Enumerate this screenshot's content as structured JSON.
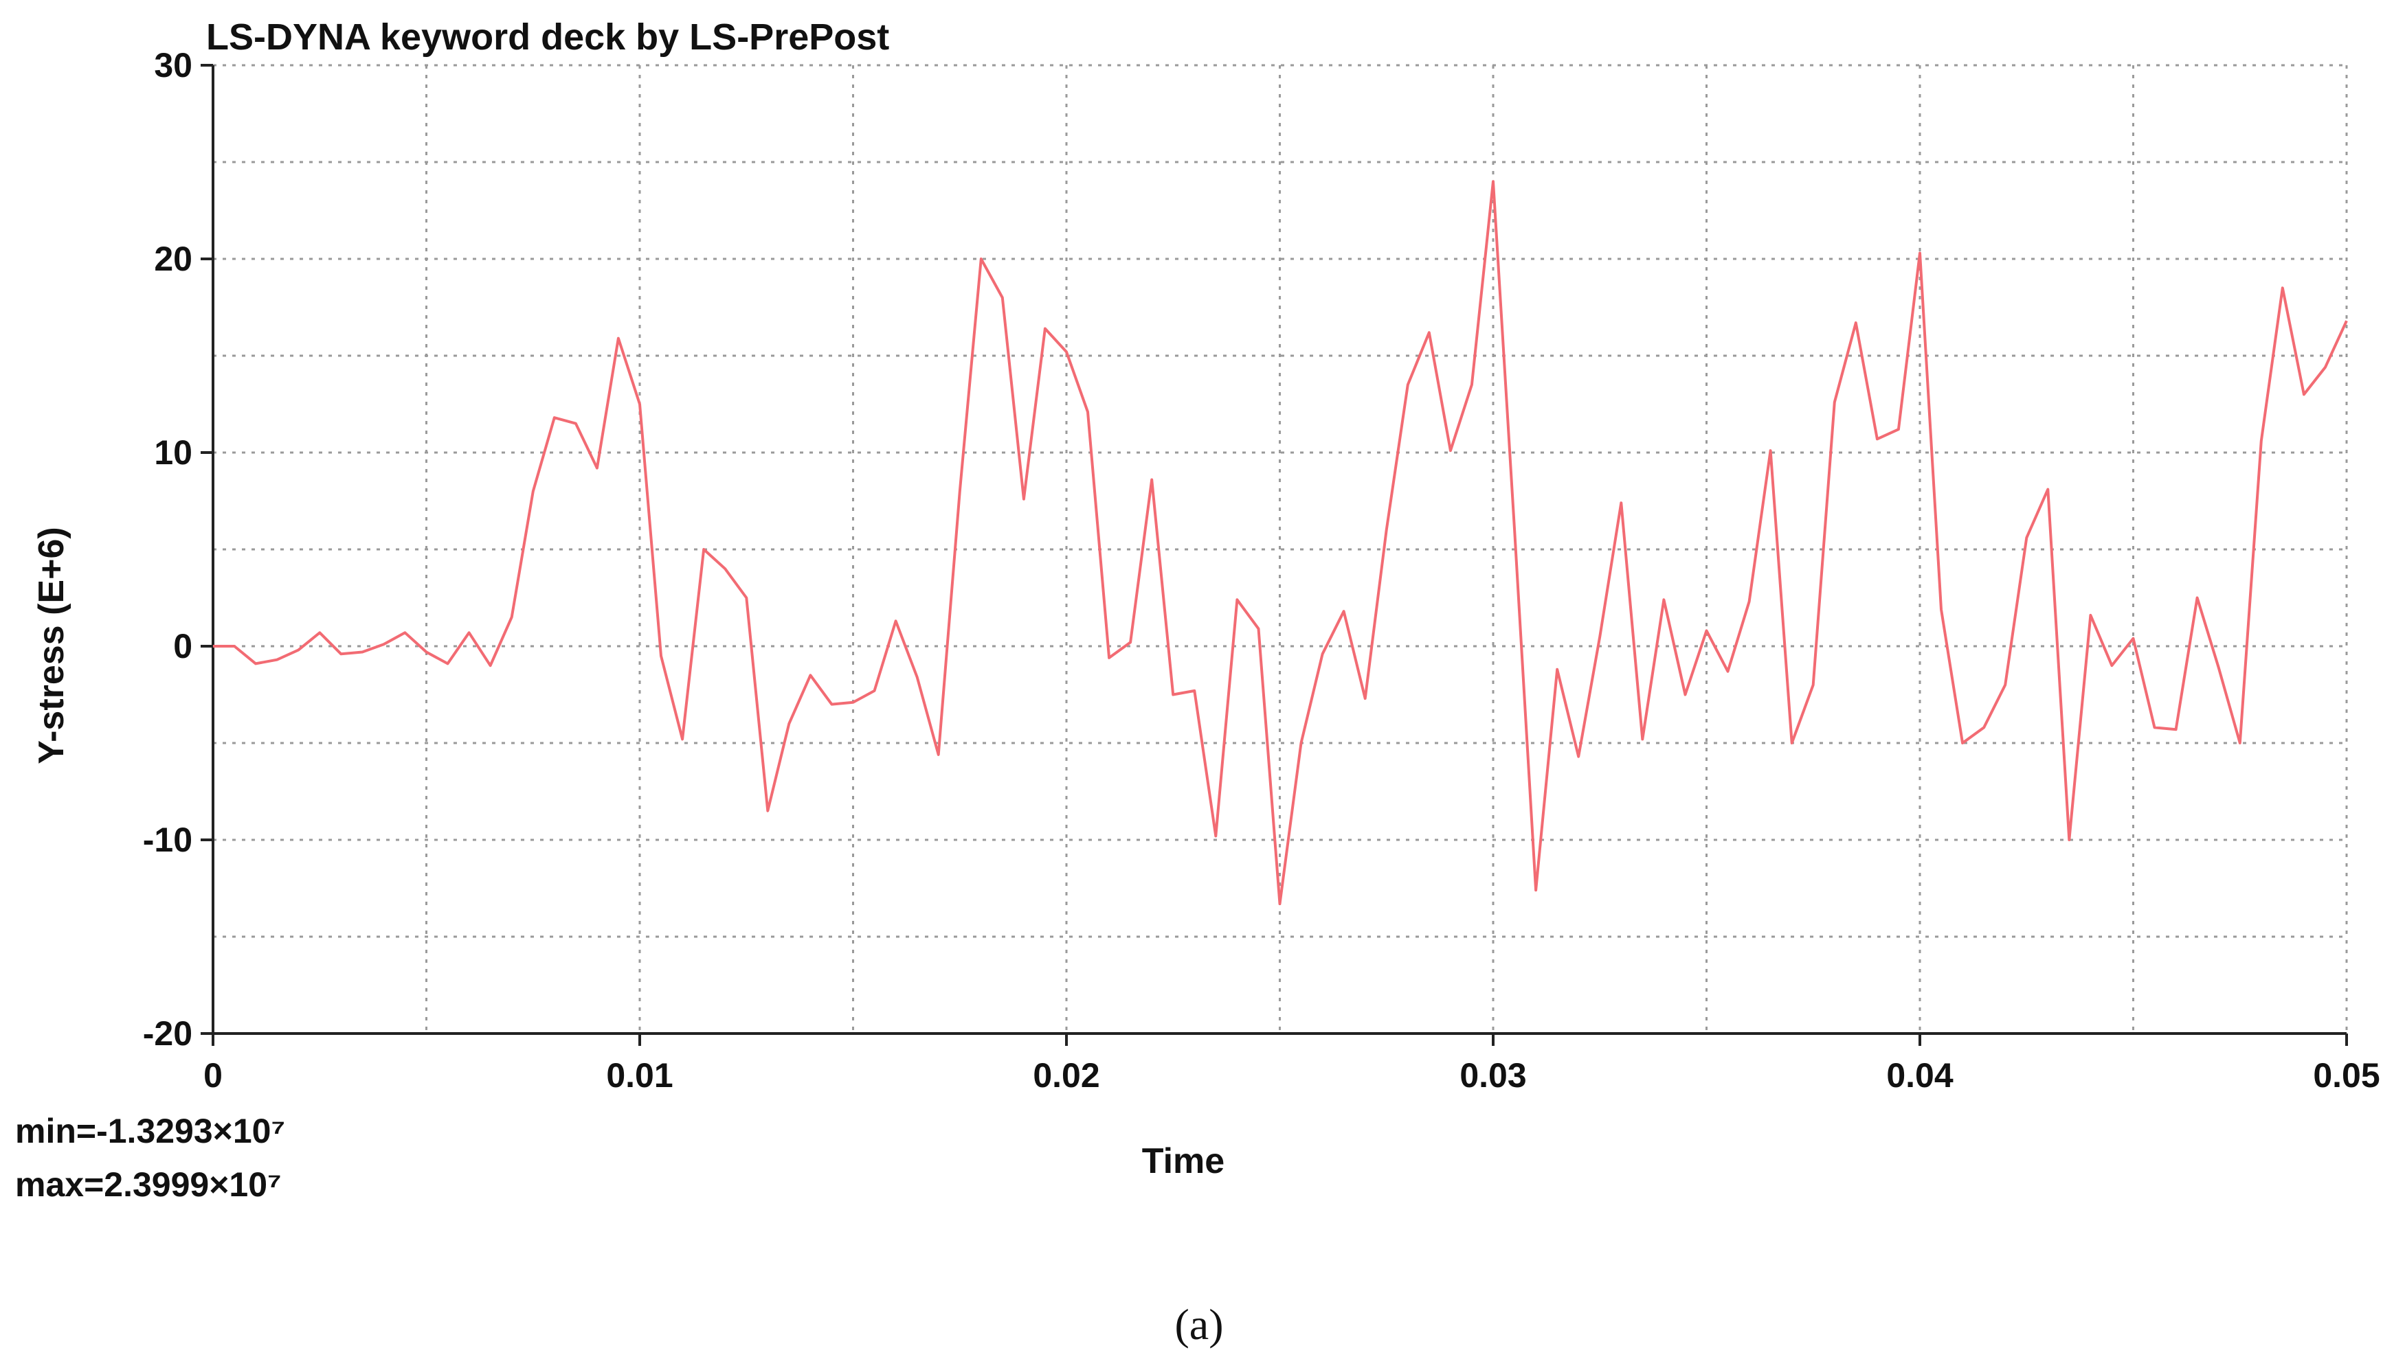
{
  "chart_data": {
    "type": "line",
    "title": "LS-DYNA keyword deck by LS-PrePost",
    "xlabel": "Time",
    "ylabel": "Y-stress (E+6)",
    "xlim": [
      0,
      0.05
    ],
    "ylim": [
      -20,
      30
    ],
    "x_ticks": [
      "0",
      "0.01",
      "0.02",
      "0.03",
      "0.04",
      "0.05"
    ],
    "y_ticks": [
      "30",
      "20",
      "10",
      "0",
      "-10",
      "-20"
    ],
    "grid": true,
    "line_color": "#f26b73",
    "series": [
      {
        "x": [
          0,
          0.0005,
          0.001,
          0.0015,
          0.002,
          0.0025,
          0.003,
          0.0035,
          0.004,
          0.0045,
          0.005,
          0.0055,
          0.006,
          0.0065,
          0.007,
          0.0075,
          0.008,
          0.0085,
          0.009,
          0.0095,
          0.01,
          0.0105,
          0.011,
          0.0115,
          0.012,
          0.0125,
          0.013,
          0.0135,
          0.014,
          0.0145,
          0.015,
          0.0155,
          0.016,
          0.0165,
          0.017,
          0.0175,
          0.018,
          0.0185,
          0.019,
          0.0195,
          0.02,
          0.0205,
          0.021,
          0.0215,
          0.022,
          0.0225,
          0.023,
          0.0235,
          0.024,
          0.0245,
          0.025,
          0.0255,
          0.026,
          0.0265,
          0.027,
          0.0275,
          0.028,
          0.0285,
          0.029,
          0.0295,
          0.03,
          0.0305,
          0.031,
          0.0315,
          0.032,
          0.0325,
          0.033,
          0.0335,
          0.034,
          0.0345,
          0.035,
          0.0355,
          0.036,
          0.0365,
          0.037,
          0.0375,
          0.038,
          0.0385,
          0.039,
          0.0395,
          0.04,
          0.0405,
          0.041,
          0.0415,
          0.042,
          0.0425,
          0.043,
          0.0435,
          0.044,
          0.0445,
          0.045,
          0.0455,
          0.046,
          0.0465,
          0.047,
          0.0475,
          0.048,
          0.0485,
          0.049,
          0.0495,
          0.05
        ],
        "values": [
          0,
          0,
          -0.9,
          -0.7,
          -0.2,
          0.7,
          -0.4,
          -0.3,
          0.1,
          0.7,
          -0.3,
          -0.9,
          0.7,
          -1.0,
          1.5,
          8.0,
          11.8,
          11.5,
          9.2,
          15.9,
          12.5,
          -0.5,
          -4.8,
          5.0,
          4.0,
          2.5,
          -8.5,
          -4.0,
          -1.5,
          -3.0,
          -2.9,
          -2.3,
          1.3,
          -1.6,
          -5.6,
          8.0,
          20.0,
          18.0,
          7.6,
          16.4,
          15.2,
          12.1,
          -0.6,
          0.2,
          8.6,
          -2.5,
          -2.3,
          -9.8,
          2.4,
          0.9,
          -13.3,
          -5.0,
          -0.4,
          1.8,
          -2.7,
          6.0,
          13.5,
          16.2,
          10.1,
          13.5,
          24.0,
          6.0,
          -12.6,
          -1.2,
          -5.7,
          0.5,
          7.4,
          -4.8,
          2.4,
          -2.5,
          0.8,
          -1.3,
          2.3,
          10.1,
          -5.0,
          -2.0,
          12.6,
          16.7,
          10.7,
          11.2,
          20.3,
          1.9,
          -5.0,
          -4.2,
          -2.0,
          5.6,
          8.1,
          -10.0,
          1.6,
          -1.0,
          0.4,
          -4.2,
          -4.3,
          2.5,
          -1.1,
          -5.0,
          10.6,
          18.5,
          13.0,
          14.4,
          16.8
        ]
      }
    ],
    "annotations": {
      "min": "min=-1.3293×10⁷",
      "max": "max=2.3999×10⁷"
    }
  },
  "caption": "(a)"
}
